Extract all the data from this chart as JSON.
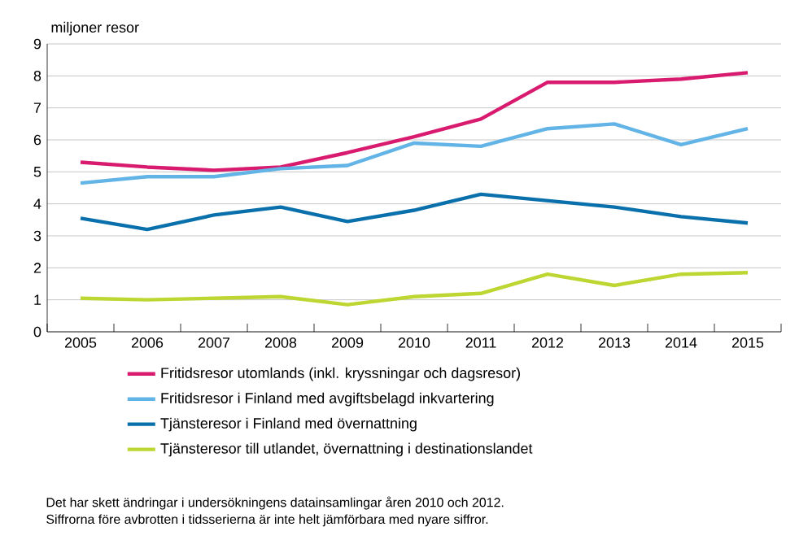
{
  "chart_data": {
    "type": "line",
    "ylabel": "miljoner resor",
    "categories": [
      "2005",
      "2006",
      "2007",
      "2008",
      "2009",
      "2010",
      "2011",
      "2012",
      "2013",
      "2014",
      "2015"
    ],
    "series": [
      {
        "name": "Fritidsresor utomlands (inkl. kryssningar och dagsresor)",
        "color": "#d81b6f",
        "values": [
          5.3,
          5.15,
          5.05,
          5.15,
          5.6,
          6.1,
          6.65,
          7.8,
          7.8,
          7.9,
          8.1
        ]
      },
      {
        "name": "Fritidsresor i Finland med avgiftsbelagd inkvartering",
        "color": "#63b4e6",
        "values": [
          4.65,
          4.85,
          4.85,
          5.1,
          5.2,
          5.9,
          5.8,
          6.35,
          6.5,
          5.85,
          6.35
        ]
      },
      {
        "name": "Tjänsteresor i Finland med övernattning",
        "color": "#0a70ac",
        "values": [
          3.55,
          3.2,
          3.65,
          3.9,
          3.45,
          3.8,
          4.3,
          4.1,
          3.9,
          3.6,
          3.4
        ]
      },
      {
        "name": "Tjänsteresor till utlandet, övernattning i destinationslandet",
        "color": "#bdd631",
        "values": [
          1.05,
          1.0,
          1.05,
          1.1,
          0.85,
          1.1,
          1.2,
          1.8,
          1.45,
          1.8,
          1.85
        ]
      }
    ],
    "ylim": [
      0,
      9
    ],
    "yticks": [
      0,
      1,
      2,
      3,
      4,
      5,
      6,
      7,
      8,
      9
    ],
    "grid": "y",
    "legend": "bottom",
    "marker": "none",
    "line_style": "solid",
    "annotations": [
      "Det har skett ändringar i undersökningens datainsamlingar åren 2010 och 2012.",
      "Siffrorna före avbrotten i tidsserierna är inte helt jämförbara med nyare siffror."
    ]
  }
}
